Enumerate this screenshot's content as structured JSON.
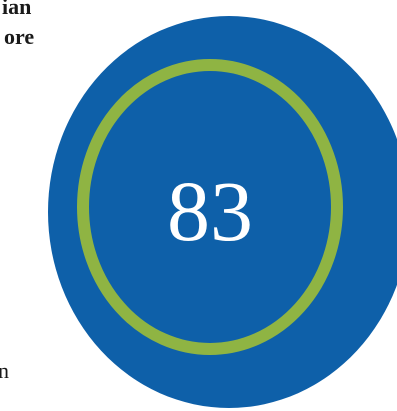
{
  "text_fragments": [
    "ian",
    "ore",
    "n"
  ],
  "badge": {
    "value": "83",
    "colors": {
      "disc": "#0e60a9",
      "ring": "#8fb443",
      "number": "#ffffff"
    }
  }
}
